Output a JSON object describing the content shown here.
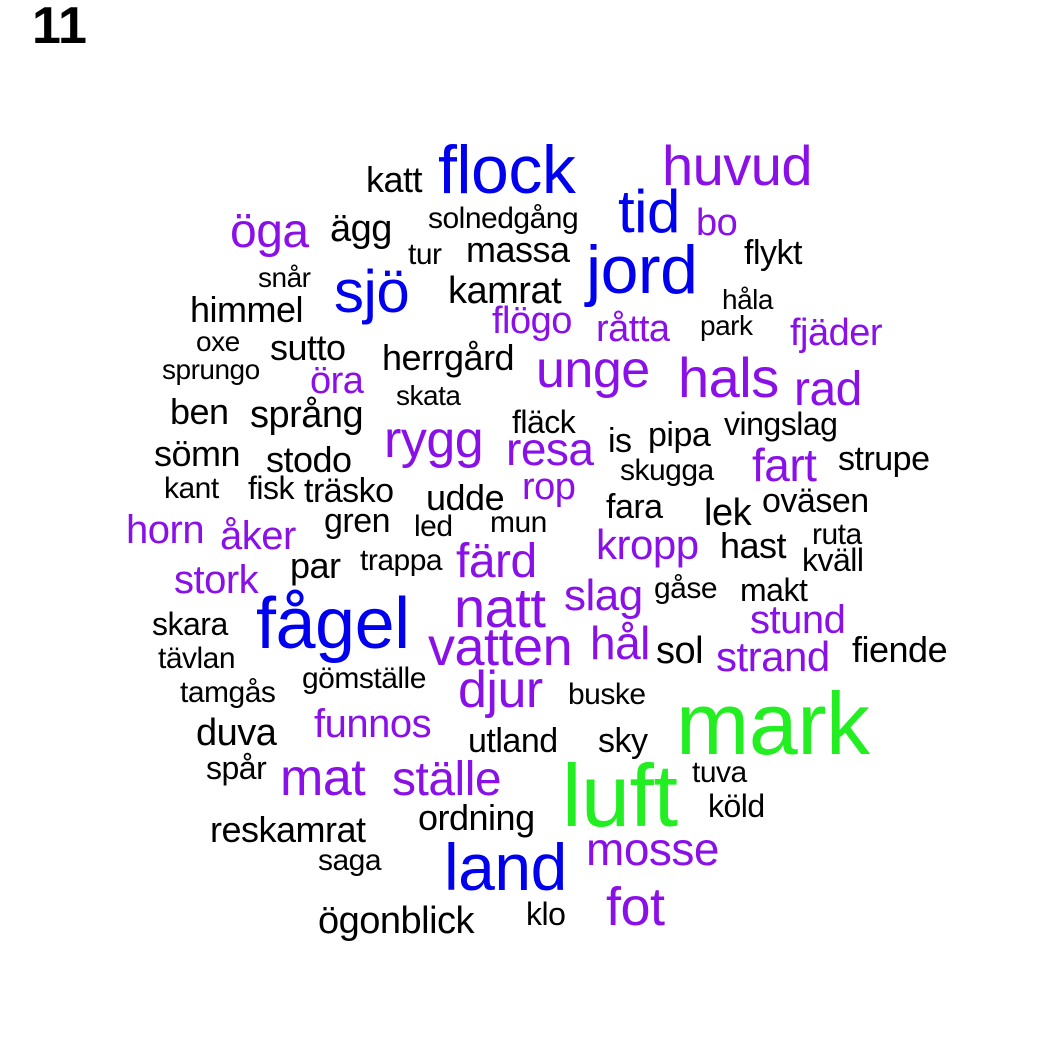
{
  "page_number": "11",
  "colors": {
    "tier1": "#22ee22",
    "tier2": "#0000ee",
    "tier3": "#8a10e8",
    "tier4": "#000000"
  },
  "words": {
    "mark": "mark",
    "luft": "luft",
    "flock": "flock",
    "jord": "jord",
    "sjo": "sjö",
    "tid": "tid",
    "fagel": "fågel",
    "land": "land",
    "huvud": "huvud",
    "oga": "öga",
    "bo": "bo",
    "flogo": "flögo",
    "ratta": "råtta",
    "fjader": "fjäder",
    "ora": "öra",
    "unge": "unge",
    "hals": "hals",
    "rad": "rad",
    "rygg": "rygg",
    "resa": "resa",
    "fart": "fart",
    "rop": "rop",
    "horn": "horn",
    "aker": "åker",
    "kropp": "kropp",
    "fard": "färd",
    "stork": "stork",
    "natt": "natt",
    "slag": "slag",
    "stund": "stund",
    "hal": "hål",
    "vatten": "vatten",
    "strand": "strand",
    "djur": "djur",
    "funnos": "funnos",
    "mat": "mat",
    "stalle": "ställe",
    "mosse": "mosse",
    "fot": "fot",
    "katt": "katt",
    "agg": "ägg",
    "solnedgang": "solnedgång",
    "tur": "tur",
    "massa": "massa",
    "flykt": "flykt",
    "snar": "snår",
    "kamrat": "kamrat",
    "hala": "håla",
    "himmel": "himmel",
    "park": "park",
    "oxe": "oxe",
    "sutto": "sutto",
    "herrgard": "herrgård",
    "sprungo": "sprungo",
    "skata": "skata",
    "ben": "ben",
    "sprang": "språng",
    "flack": "fläck",
    "vingslag": "vingslag",
    "is": "is",
    "pipa": "pipa",
    "somn": "sömn",
    "stodo": "stodo",
    "strupe": "strupe",
    "skugga": "skugga",
    "kant": "kant",
    "fisk": "fisk",
    "trasko": "träsko",
    "udde": "udde",
    "ovasen": "oväsen",
    "fara": "fara",
    "lek": "lek",
    "gren": "gren",
    "led": "led",
    "mun": "mun",
    "ruta": "ruta",
    "hast": "hast",
    "kvall": "kväll",
    "par": "par",
    "trappa": "trappa",
    "gase": "gåse",
    "makt": "makt",
    "skara": "skara",
    "tavlan": "tävlan",
    "sol": "sol",
    "fiende": "fiende",
    "gomstalle": "gömställe",
    "tamgas": "tamgås",
    "buske": "buske",
    "duva": "duva",
    "utland": "utland",
    "sky": "sky",
    "spar": "spår",
    "tuva": "tuva",
    "kold": "köld",
    "ordning": "ordning",
    "reskamrat": "reskamrat",
    "saga": "saga",
    "ogonblick": "ögonblick",
    "klo": "klo"
  }
}
